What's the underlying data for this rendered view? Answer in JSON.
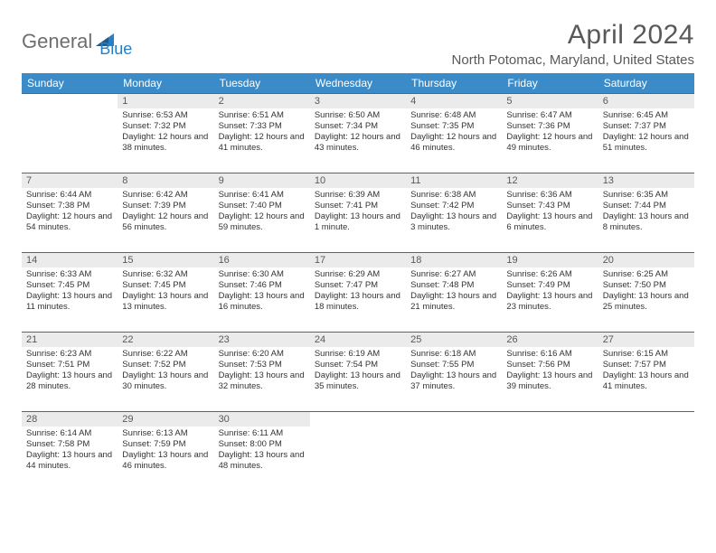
{
  "logo": {
    "part1": "General",
    "part2": "Blue"
  },
  "title": "April 2024",
  "subtitle": "North Potomac, Maryland, United States",
  "colors": {
    "header_bg": "#3b8bc8",
    "header_text": "#ffffff",
    "row_border": "#3b6a95",
    "daynum_bg": "#ebebeb",
    "text_muted": "#595959",
    "logo_gray": "#6d6e71",
    "logo_blue": "#2a7ec4"
  },
  "day_headers": [
    "Sunday",
    "Monday",
    "Tuesday",
    "Wednesday",
    "Thursday",
    "Friday",
    "Saturday"
  ],
  "weeks": [
    [
      {
        "n": "",
        "sr": "",
        "ss": "",
        "dl": "",
        "empty": true
      },
      {
        "n": "1",
        "sr": "Sunrise: 6:53 AM",
        "ss": "Sunset: 7:32 PM",
        "dl": "Daylight: 12 hours and 38 minutes."
      },
      {
        "n": "2",
        "sr": "Sunrise: 6:51 AM",
        "ss": "Sunset: 7:33 PM",
        "dl": "Daylight: 12 hours and 41 minutes."
      },
      {
        "n": "3",
        "sr": "Sunrise: 6:50 AM",
        "ss": "Sunset: 7:34 PM",
        "dl": "Daylight: 12 hours and 43 minutes."
      },
      {
        "n": "4",
        "sr": "Sunrise: 6:48 AM",
        "ss": "Sunset: 7:35 PM",
        "dl": "Daylight: 12 hours and 46 minutes."
      },
      {
        "n": "5",
        "sr": "Sunrise: 6:47 AM",
        "ss": "Sunset: 7:36 PM",
        "dl": "Daylight: 12 hours and 49 minutes."
      },
      {
        "n": "6",
        "sr": "Sunrise: 6:45 AM",
        "ss": "Sunset: 7:37 PM",
        "dl": "Daylight: 12 hours and 51 minutes."
      }
    ],
    [
      {
        "n": "7",
        "sr": "Sunrise: 6:44 AM",
        "ss": "Sunset: 7:38 PM",
        "dl": "Daylight: 12 hours and 54 minutes."
      },
      {
        "n": "8",
        "sr": "Sunrise: 6:42 AM",
        "ss": "Sunset: 7:39 PM",
        "dl": "Daylight: 12 hours and 56 minutes."
      },
      {
        "n": "9",
        "sr": "Sunrise: 6:41 AM",
        "ss": "Sunset: 7:40 PM",
        "dl": "Daylight: 12 hours and 59 minutes."
      },
      {
        "n": "10",
        "sr": "Sunrise: 6:39 AM",
        "ss": "Sunset: 7:41 PM",
        "dl": "Daylight: 13 hours and 1 minute."
      },
      {
        "n": "11",
        "sr": "Sunrise: 6:38 AM",
        "ss": "Sunset: 7:42 PM",
        "dl": "Daylight: 13 hours and 3 minutes."
      },
      {
        "n": "12",
        "sr": "Sunrise: 6:36 AM",
        "ss": "Sunset: 7:43 PM",
        "dl": "Daylight: 13 hours and 6 minutes."
      },
      {
        "n": "13",
        "sr": "Sunrise: 6:35 AM",
        "ss": "Sunset: 7:44 PM",
        "dl": "Daylight: 13 hours and 8 minutes."
      }
    ],
    [
      {
        "n": "14",
        "sr": "Sunrise: 6:33 AM",
        "ss": "Sunset: 7:45 PM",
        "dl": "Daylight: 13 hours and 11 minutes."
      },
      {
        "n": "15",
        "sr": "Sunrise: 6:32 AM",
        "ss": "Sunset: 7:45 PM",
        "dl": "Daylight: 13 hours and 13 minutes."
      },
      {
        "n": "16",
        "sr": "Sunrise: 6:30 AM",
        "ss": "Sunset: 7:46 PM",
        "dl": "Daylight: 13 hours and 16 minutes."
      },
      {
        "n": "17",
        "sr": "Sunrise: 6:29 AM",
        "ss": "Sunset: 7:47 PM",
        "dl": "Daylight: 13 hours and 18 minutes."
      },
      {
        "n": "18",
        "sr": "Sunrise: 6:27 AM",
        "ss": "Sunset: 7:48 PM",
        "dl": "Daylight: 13 hours and 21 minutes."
      },
      {
        "n": "19",
        "sr": "Sunrise: 6:26 AM",
        "ss": "Sunset: 7:49 PM",
        "dl": "Daylight: 13 hours and 23 minutes."
      },
      {
        "n": "20",
        "sr": "Sunrise: 6:25 AM",
        "ss": "Sunset: 7:50 PM",
        "dl": "Daylight: 13 hours and 25 minutes."
      }
    ],
    [
      {
        "n": "21",
        "sr": "Sunrise: 6:23 AM",
        "ss": "Sunset: 7:51 PM",
        "dl": "Daylight: 13 hours and 28 minutes."
      },
      {
        "n": "22",
        "sr": "Sunrise: 6:22 AM",
        "ss": "Sunset: 7:52 PM",
        "dl": "Daylight: 13 hours and 30 minutes."
      },
      {
        "n": "23",
        "sr": "Sunrise: 6:20 AM",
        "ss": "Sunset: 7:53 PM",
        "dl": "Daylight: 13 hours and 32 minutes."
      },
      {
        "n": "24",
        "sr": "Sunrise: 6:19 AM",
        "ss": "Sunset: 7:54 PM",
        "dl": "Daylight: 13 hours and 35 minutes."
      },
      {
        "n": "25",
        "sr": "Sunrise: 6:18 AM",
        "ss": "Sunset: 7:55 PM",
        "dl": "Daylight: 13 hours and 37 minutes."
      },
      {
        "n": "26",
        "sr": "Sunrise: 6:16 AM",
        "ss": "Sunset: 7:56 PM",
        "dl": "Daylight: 13 hours and 39 minutes."
      },
      {
        "n": "27",
        "sr": "Sunrise: 6:15 AM",
        "ss": "Sunset: 7:57 PM",
        "dl": "Daylight: 13 hours and 41 minutes."
      }
    ],
    [
      {
        "n": "28",
        "sr": "Sunrise: 6:14 AM",
        "ss": "Sunset: 7:58 PM",
        "dl": "Daylight: 13 hours and 44 minutes."
      },
      {
        "n": "29",
        "sr": "Sunrise: 6:13 AM",
        "ss": "Sunset: 7:59 PM",
        "dl": "Daylight: 13 hours and 46 minutes."
      },
      {
        "n": "30",
        "sr": "Sunrise: 6:11 AM",
        "ss": "Sunset: 8:00 PM",
        "dl": "Daylight: 13 hours and 48 minutes."
      },
      {
        "n": "",
        "sr": "",
        "ss": "",
        "dl": "",
        "empty": true
      },
      {
        "n": "",
        "sr": "",
        "ss": "",
        "dl": "",
        "empty": true
      },
      {
        "n": "",
        "sr": "",
        "ss": "",
        "dl": "",
        "empty": true
      },
      {
        "n": "",
        "sr": "",
        "ss": "",
        "dl": "",
        "empty": true
      }
    ]
  ]
}
